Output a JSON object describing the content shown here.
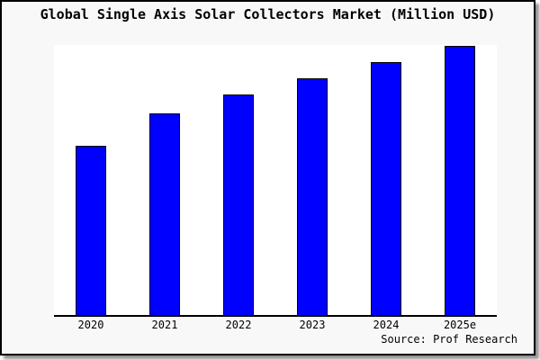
{
  "title": "Global Single Axis Solar Collectors Market (Million USD)",
  "source": "Source: Prof Research",
  "colors": {
    "bar": "#0000fe",
    "bar_border": "#000000",
    "panel_background": "#f8f8f8",
    "plot_background": "#ffffff",
    "axis": "#000000",
    "frame_border": "#000000"
  },
  "chart_data": {
    "type": "bar",
    "title": "Global Single Axis Solar Collectors Market (Million USD)",
    "categories": [
      "2020",
      "2021",
      "2022",
      "2023",
      "2024",
      "2025e"
    ],
    "values": [
      63,
      75,
      82,
      88,
      94,
      100
    ],
    "note": "No y-axis scale, gridlines or data labels are shown in the image; values are relative estimates of bar heights normalized to 2025e = 100.",
    "xlabel": "",
    "ylabel": "",
    "ylim": [
      0,
      100.5
    ],
    "grid": false,
    "legend": "none",
    "annotations": [
      "Source: Prof Research"
    ]
  }
}
